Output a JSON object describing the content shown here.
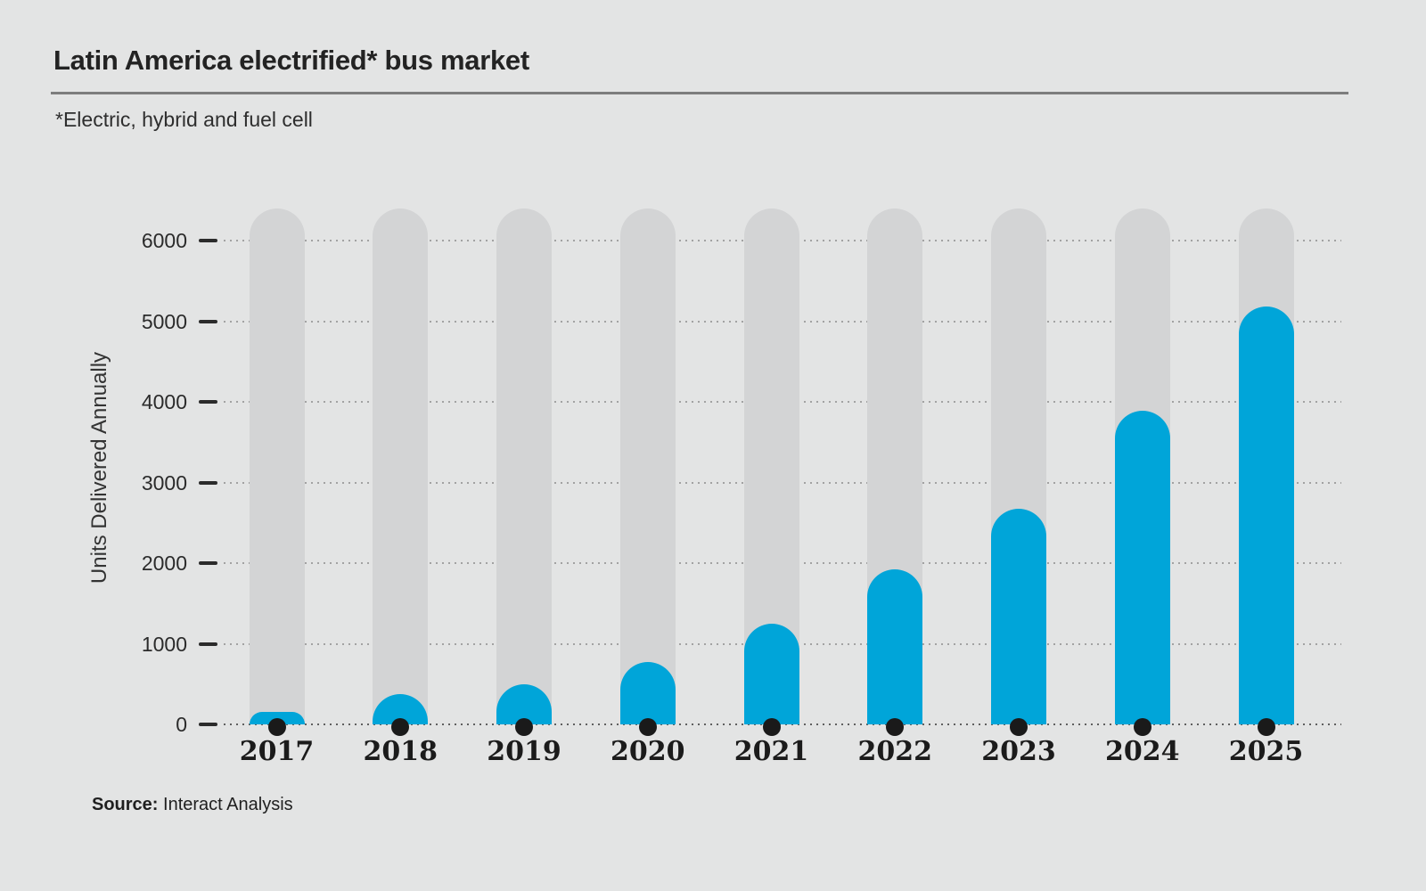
{
  "header": {
    "title": "Latin America electrified* bus market",
    "subtitle": "*Electric, hybrid and fuel cell"
  },
  "source": {
    "label": "Source:",
    "text": "Interact Analysis"
  },
  "chart_data": {
    "type": "bar",
    "title": "Latin America electrified* bus market",
    "subtitle_note": "*Electric, hybrid and fuel cell",
    "categories": [
      "2017",
      "2018",
      "2019",
      "2020",
      "2021",
      "2022",
      "2023",
      "2024",
      "2025"
    ],
    "values": [
      150,
      380,
      500,
      770,
      1250,
      1920,
      2670,
      3890,
      5180
    ],
    "xlabel": "",
    "ylabel": "Units Delivered Annually",
    "yticks": [
      0,
      1000,
      2000,
      3000,
      4000,
      5000,
      6000
    ],
    "ylim": [
      0,
      6400
    ],
    "grid": "dotted-horizontal",
    "legend": "none",
    "bar_style": "rounded-top pill on full-height gray track, black dot at base",
    "colors": {
      "bar": "#00a5d9",
      "track": "#d3d4d5",
      "background": "#e3e4e4",
      "dot": "#1a1a1a",
      "text": "#2b2b2b"
    }
  }
}
